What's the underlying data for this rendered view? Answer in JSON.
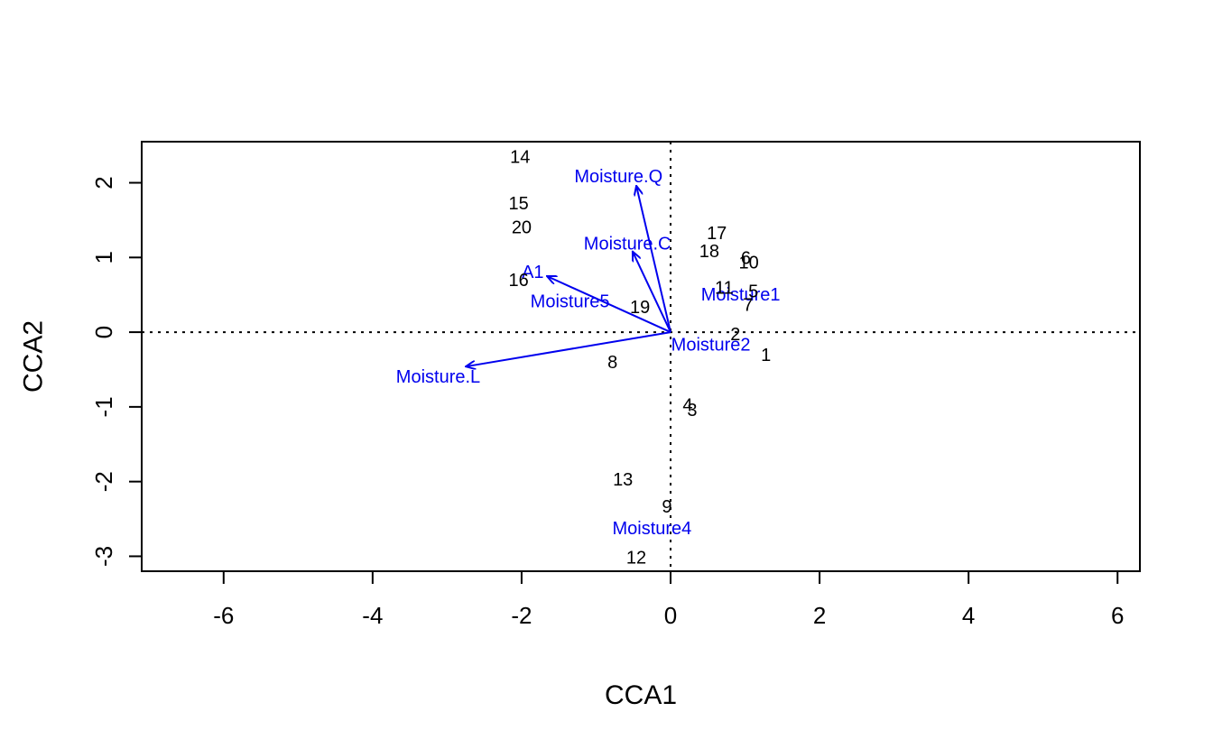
{
  "chart_data": {
    "type": "scatter",
    "title": "",
    "xlabel": "CCA1",
    "ylabel": "CCA2",
    "xlim": [
      -7.1,
      6.3
    ],
    "ylim": [
      -3.2,
      2.55
    ],
    "x_ticks": [
      -6,
      -4,
      -2,
      0,
      2,
      4,
      6
    ],
    "y_ticks": [
      -3,
      -2,
      -1,
      0,
      1,
      2
    ],
    "reference_lines": {
      "x": 0,
      "y": 0,
      "style": "dotted"
    },
    "grid": false,
    "colors": {
      "sites": "#000000",
      "biplot": "#0000ee"
    },
    "sites": [
      {
        "label": "1",
        "x": 1.28,
        "y": -0.3
      },
      {
        "label": "2",
        "x": 0.87,
        "y": -0.02
      },
      {
        "label": "3",
        "x": 0.29,
        "y": -1.04
      },
      {
        "label": "4",
        "x": 0.23,
        "y": -0.97
      },
      {
        "label": "5",
        "x": 1.11,
        "y": 0.55
      },
      {
        "label": "6",
        "x": 1.01,
        "y": 1.0
      },
      {
        "label": "7",
        "x": 1.04,
        "y": 0.37
      },
      {
        "label": "8",
        "x": -0.78,
        "y": -0.4
      },
      {
        "label": "9",
        "x": -0.05,
        "y": -2.33
      },
      {
        "label": "10",
        "x": 1.05,
        "y": 0.94
      },
      {
        "label": "11",
        "x": 0.72,
        "y": 0.6
      },
      {
        "label": "12",
        "x": -0.46,
        "y": -3.01
      },
      {
        "label": "13",
        "x": -0.64,
        "y": -1.97
      },
      {
        "label": "14",
        "x": -2.02,
        "y": 2.35
      },
      {
        "label": "15",
        "x": -2.04,
        "y": 1.73
      },
      {
        "label": "16",
        "x": -2.04,
        "y": 0.7
      },
      {
        "label": "17",
        "x": 0.62,
        "y": 1.33
      },
      {
        "label": "18",
        "x": 0.52,
        "y": 1.09
      },
      {
        "label": "19",
        "x": -0.41,
        "y": 0.34
      },
      {
        "label": "20",
        "x": -2.0,
        "y": 1.41
      }
    ],
    "biplot": [
      {
        "label": "Moisture.Q",
        "x": -0.46,
        "y": 1.96,
        "label_x": -0.7,
        "label_y": 2.09
      },
      {
        "label": "Moisture.C",
        "x": -0.51,
        "y": 1.08,
        "label_x": -0.58,
        "label_y": 1.19
      },
      {
        "label": "A1",
        "x": -1.66,
        "y": 0.75,
        "label_x": -1.85,
        "label_y": 0.81
      },
      {
        "label": "Moisture5",
        "x": null,
        "y": null,
        "label_x": -1.35,
        "label_y": 0.42
      },
      {
        "label": "Moisture.L",
        "x": -2.75,
        "y": -0.46,
        "label_x": -3.12,
        "label_y": -0.59
      },
      {
        "label": "Moisture1",
        "x": null,
        "y": null,
        "label_x": 0.94,
        "label_y": 0.51
      },
      {
        "label": "Moisture2",
        "x": null,
        "y": null,
        "label_x": 0.54,
        "label_y": -0.16
      },
      {
        "label": "Moisture4",
        "x": null,
        "y": null,
        "label_x": -0.25,
        "label_y": -2.62
      }
    ]
  }
}
